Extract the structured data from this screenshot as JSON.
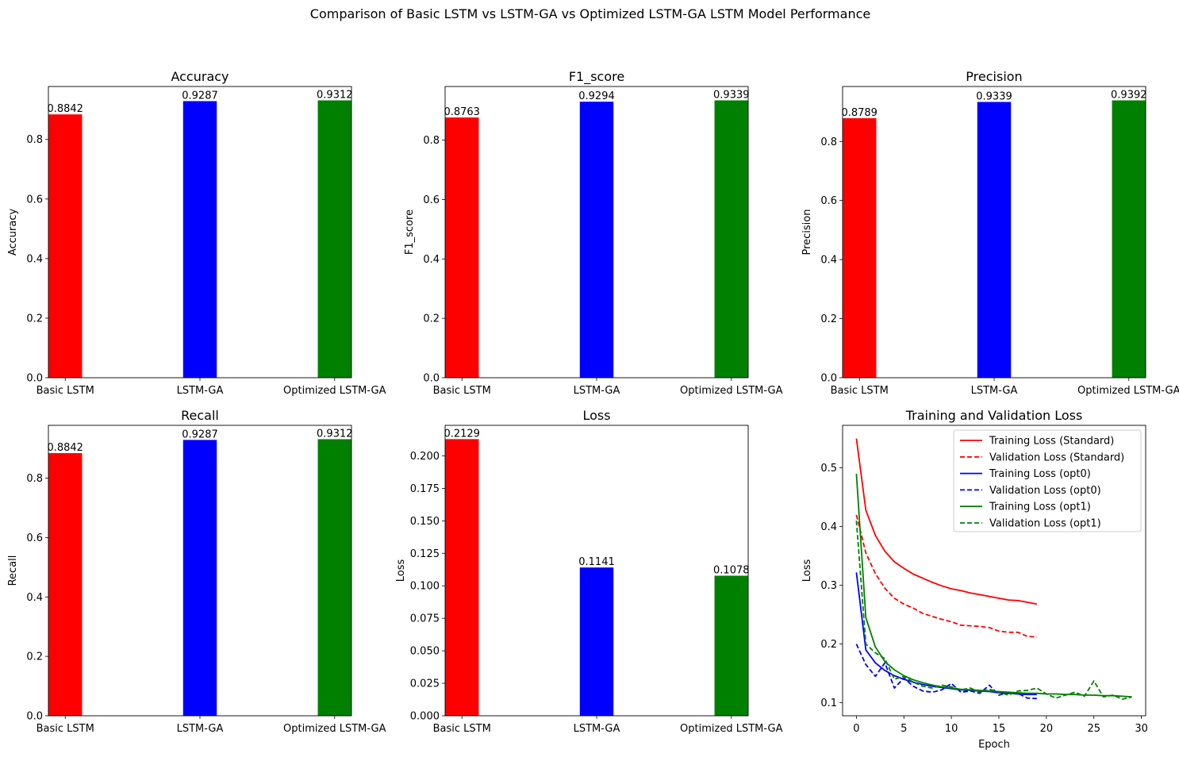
{
  "figure": {
    "suptitle": "Comparison of Basic LSTM vs LSTM-GA vs Optimized LSTM-GA LSTM Model Performance"
  },
  "chart_data": [
    {
      "type": "bar",
      "title": "Accuracy",
      "ylabel": "Accuracy",
      "xlabel": "",
      "categories": [
        "Basic LSTM",
        "LSTM-GA",
        "Optimized LSTM-GA"
      ],
      "values": [
        0.8842,
        0.9287,
        0.9312
      ],
      "data_labels": [
        "0.8842",
        "0.9287",
        "0.9312"
      ],
      "colors": [
        "#ff0000",
        "#0000ff",
        "#008000"
      ],
      "ylim": [
        0,
        0.9778
      ],
      "yticks": [
        0.0,
        0.2,
        0.4,
        0.6,
        0.8
      ],
      "ytick_labels": [
        "0.0",
        "0.2",
        "0.4",
        "0.6",
        "0.8"
      ]
    },
    {
      "type": "bar",
      "title": "F1_score",
      "ylabel": "F1_score",
      "xlabel": "",
      "categories": [
        "Basic LSTM",
        "LSTM-GA",
        "Optimized LSTM-GA"
      ],
      "values": [
        0.8763,
        0.9294,
        0.9339
      ],
      "data_labels": [
        "0.8763",
        "0.9294",
        "0.9339"
      ],
      "colors": [
        "#ff0000",
        "#0000ff",
        "#008000"
      ],
      "ylim": [
        0,
        0.9806
      ],
      "yticks": [
        0.0,
        0.2,
        0.4,
        0.6,
        0.8
      ],
      "ytick_labels": [
        "0.0",
        "0.2",
        "0.4",
        "0.6",
        "0.8"
      ]
    },
    {
      "type": "bar",
      "title": "Precision",
      "ylabel": "Precision",
      "xlabel": "",
      "categories": [
        "Basic LSTM",
        "LSTM-GA",
        "Optimized LSTM-GA"
      ],
      "values": [
        0.8789,
        0.9339,
        0.9392
      ],
      "data_labels": [
        "0.8789",
        "0.9339",
        "0.9392"
      ],
      "colors": [
        "#ff0000",
        "#0000ff",
        "#008000"
      ],
      "ylim": [
        0,
        0.9862
      ],
      "yticks": [
        0.0,
        0.2,
        0.4,
        0.6,
        0.8
      ],
      "ytick_labels": [
        "0.0",
        "0.2",
        "0.4",
        "0.6",
        "0.8"
      ]
    },
    {
      "type": "bar",
      "title": "Recall",
      "ylabel": "Recall",
      "xlabel": "",
      "categories": [
        "Basic LSTM",
        "LSTM-GA",
        "Optimized LSTM-GA"
      ],
      "values": [
        0.8842,
        0.9287,
        0.9312
      ],
      "data_labels": [
        "0.8842",
        "0.9287",
        "0.9312"
      ],
      "colors": [
        "#ff0000",
        "#0000ff",
        "#008000"
      ],
      "ylim": [
        0,
        0.9778
      ],
      "yticks": [
        0.0,
        0.2,
        0.4,
        0.6,
        0.8
      ],
      "ytick_labels": [
        "0.0",
        "0.2",
        "0.4",
        "0.6",
        "0.8"
      ]
    },
    {
      "type": "bar",
      "title": "Loss",
      "ylabel": "Loss",
      "xlabel": "",
      "categories": [
        "Basic LSTM",
        "LSTM-GA",
        "Optimized LSTM-GA"
      ],
      "values": [
        0.2129,
        0.1141,
        0.1078
      ],
      "data_labels": [
        "0.2129",
        "0.1141",
        "0.1078"
      ],
      "colors": [
        "#ff0000",
        "#0000ff",
        "#008000"
      ],
      "ylim": [
        0,
        0.2235
      ],
      "yticks": [
        0.0,
        0.025,
        0.05,
        0.075,
        0.1,
        0.125,
        0.15,
        0.175,
        0.2
      ],
      "ytick_labels": [
        "0.000",
        "0.025",
        "0.050",
        "0.075",
        "0.100",
        "0.125",
        "0.150",
        "0.175",
        "0.200"
      ]
    },
    {
      "type": "line",
      "title": "Training and Validation Loss",
      "xlabel": "Epoch",
      "ylabel": "Loss",
      "xlim": [
        -1.45,
        30.45
      ],
      "ylim": [
        0.0778,
        0.5724
      ],
      "xticks": [
        0,
        5,
        10,
        15,
        20,
        25,
        30
      ],
      "xtick_labels": [
        "0",
        "5",
        "10",
        "15",
        "20",
        "25",
        "30"
      ],
      "yticks": [
        0.1,
        0.2,
        0.3,
        0.4,
        0.5
      ],
      "ytick_labels": [
        "0.1",
        "0.2",
        "0.3",
        "0.4",
        "0.5"
      ],
      "legend_position": "top-right",
      "series": [
        {
          "name": "Training Loss (Standard)",
          "color": "#ff0000",
          "dash": "solid",
          "x": [
            0,
            1,
            2,
            3,
            4,
            5,
            6,
            7,
            8,
            9,
            10,
            11,
            12,
            13,
            14,
            15,
            16,
            17,
            18,
            19
          ],
          "y": [
            0.55,
            0.428,
            0.385,
            0.358,
            0.34,
            0.329,
            0.319,
            0.312,
            0.305,
            0.299,
            0.294,
            0.291,
            0.287,
            0.284,
            0.281,
            0.278,
            0.275,
            0.274,
            0.271,
            0.268
          ]
        },
        {
          "name": "Validation Loss (Standard)",
          "color": "#ff0000",
          "dash": "dashed",
          "x": [
            0,
            1,
            2,
            3,
            4,
            5,
            6,
            7,
            8,
            9,
            10,
            11,
            12,
            13,
            14,
            15,
            16,
            17,
            18,
            19
          ],
          "y": [
            0.42,
            0.355,
            0.32,
            0.295,
            0.278,
            0.268,
            0.261,
            0.252,
            0.247,
            0.242,
            0.238,
            0.232,
            0.231,
            0.23,
            0.228,
            0.222,
            0.22,
            0.22,
            0.213,
            0.212
          ]
        },
        {
          "name": "Training Loss (opt0)",
          "color": "#0000ff",
          "dash": "solid",
          "x": [
            0,
            1,
            2,
            3,
            4,
            5,
            6,
            7,
            8,
            9,
            10,
            11,
            12,
            13,
            14,
            15,
            16,
            17,
            18,
            19
          ],
          "y": [
            0.322,
            0.19,
            0.168,
            0.155,
            0.146,
            0.14,
            0.135,
            0.131,
            0.128,
            0.126,
            0.124,
            0.122,
            0.121,
            0.12,
            0.119,
            0.117,
            0.116,
            0.115,
            0.114,
            0.114
          ]
        },
        {
          "name": "Validation Loss (opt0)",
          "color": "#0000ff",
          "dash": "dashed",
          "x": [
            0,
            1,
            2,
            3,
            4,
            5,
            6,
            7,
            8,
            9,
            10,
            11,
            12,
            13,
            14,
            15,
            16,
            17,
            18,
            19
          ],
          "y": [
            0.2,
            0.165,
            0.145,
            0.168,
            0.125,
            0.142,
            0.128,
            0.12,
            0.118,
            0.122,
            0.133,
            0.118,
            0.12,
            0.116,
            0.13,
            0.113,
            0.118,
            0.116,
            0.108,
            0.107
          ]
        },
        {
          "name": "Training Loss (opt1)",
          "color": "#008000",
          "dash": "solid",
          "x": [
            0,
            1,
            2,
            3,
            4,
            5,
            6,
            7,
            8,
            9,
            10,
            11,
            12,
            13,
            14,
            15,
            16,
            17,
            18,
            19,
            20,
            21,
            22,
            23,
            24,
            25,
            26,
            27,
            28,
            29
          ],
          "y": [
            0.49,
            0.245,
            0.195,
            0.17,
            0.156,
            0.146,
            0.139,
            0.134,
            0.13,
            0.127,
            0.125,
            0.123,
            0.122,
            0.121,
            0.12,
            0.119,
            0.118,
            0.117,
            0.116,
            0.116,
            0.115,
            0.115,
            0.114,
            0.114,
            0.113,
            0.113,
            0.112,
            0.112,
            0.111,
            0.11
          ]
        },
        {
          "name": "Validation Loss (opt1)",
          "color": "#008000",
          "dash": "dashed",
          "x": [
            0,
            1,
            2,
            3,
            4,
            5,
            6,
            7,
            8,
            9,
            10,
            11,
            12,
            13,
            14,
            15,
            16,
            17,
            18,
            19,
            20,
            21,
            22,
            23,
            24,
            25,
            26,
            27,
            28,
            29
          ],
          "y": [
            0.41,
            0.2,
            0.185,
            0.175,
            0.14,
            0.145,
            0.135,
            0.128,
            0.125,
            0.13,
            0.127,
            0.122,
            0.125,
            0.118,
            0.123,
            0.118,
            0.113,
            0.12,
            0.121,
            0.125,
            0.115,
            0.108,
            0.113,
            0.118,
            0.111,
            0.137,
            0.11,
            0.113,
            0.106,
            0.11
          ]
        }
      ]
    }
  ]
}
